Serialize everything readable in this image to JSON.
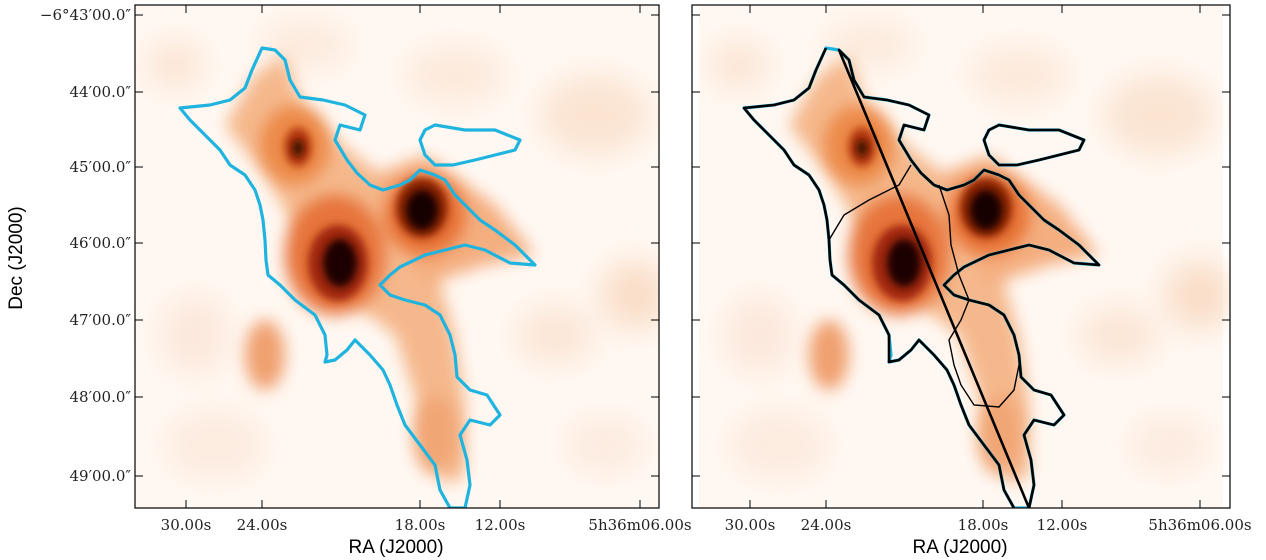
{
  "chart_data": [
    {
      "type": "heatmap",
      "panel": "left",
      "xlabel": "RA (J2000)",
      "ylabel": "Dec (J2000)",
      "x_ticks": [
        "30.00s",
        "24.00s",
        "18.00s",
        "12.00s",
        "5h36m06.00s"
      ],
      "y_ticks": [
        "−6°43′00.0″",
        "44′00.0″",
        "45′00.0″",
        "46′00.0″",
        "47′00.0″",
        "48′00.0″",
        "49′00.0″"
      ],
      "colormap": "white-orange-black",
      "contours": [
        {
          "name": "",
          "color": "#1fb4e0"
        }
      ]
    },
    {
      "type": "heatmap",
      "panel": "right",
      "xlabel": "RA (J2000)",
      "ylabel": "",
      "x_ticks": [
        "30.00s",
        "24.00s",
        "18.00s",
        "12.00s",
        "5h36m06.00s"
      ],
      "y_ticks": [],
      "colormap": "white-orange-black",
      "contours": [
        {
          "name": "",
          "color": "#1fb4e0"
        },
        {
          "name": "",
          "color": "#000000"
        }
      ]
    }
  ],
  "ui": {
    "left_xlabel": "RA (J2000)",
    "right_xlabel": "RA (J2000)",
    "ylabel": "Dec (J2000)"
  }
}
